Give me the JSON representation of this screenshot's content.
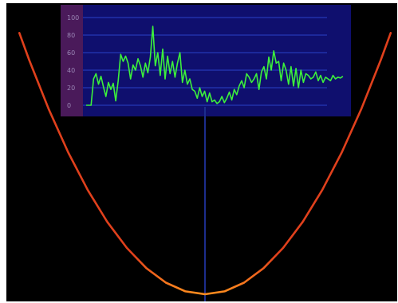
{
  "colors": {
    "background": "#000000",
    "inset_panel": "#0f0f6e",
    "inset_axis_strip": "#4a1a5a",
    "inset_grid": "#2a40c8",
    "inset_line": "#3cf03c",
    "parabola": "#e0401c",
    "parabola_highlight": "#ff8c1e",
    "center_line": "#1c2d8c"
  },
  "chart_data": [
    {
      "type": "line",
      "title": "",
      "xlabel": "",
      "ylabel": "",
      "ylim": [
        0,
        100
      ],
      "xlim": [
        0,
        105
      ],
      "y_ticks": [
        "100",
        "80",
        "60",
        "40",
        "20",
        "0"
      ],
      "grid": true,
      "legend": "none",
      "series": [
        {
          "x": [
            0,
            2,
            3,
            4,
            5,
            6,
            7,
            8,
            9,
            10,
            11,
            12,
            13,
            14,
            15,
            16,
            17,
            18,
            19,
            20,
            21,
            22,
            23,
            24,
            25,
            26,
            27,
            28,
            29,
            30,
            31,
            32,
            33,
            34,
            35,
            36,
            37,
            38,
            39,
            40,
            41,
            42,
            43,
            44,
            45,
            46,
            47,
            48,
            49,
            50,
            51,
            52,
            53,
            54,
            55,
            56,
            57,
            58,
            59,
            60,
            61,
            62,
            63,
            64,
            65,
            66,
            67,
            68,
            69,
            70,
            71,
            72,
            73,
            74,
            75,
            76,
            77,
            78,
            79,
            80,
            81,
            82,
            83,
            84,
            85,
            86,
            87,
            88,
            89,
            90,
            91,
            92,
            93,
            94,
            95,
            96,
            97,
            98,
            99,
            100,
            101,
            102,
            103,
            104
          ],
          "y": [
            0,
            0,
            30,
            36,
            24,
            33,
            21,
            10,
            26,
            18,
            25,
            5,
            28,
            58,
            50,
            56,
            48,
            30,
            46,
            40,
            53,
            45,
            32,
            48,
            37,
            55,
            90,
            45,
            60,
            34,
            64,
            30,
            56,
            36,
            50,
            32,
            48,
            60,
            26,
            40,
            24,
            30,
            18,
            16,
            8,
            20,
            10,
            16,
            4,
            14,
            4,
            6,
            2,
            4,
            10,
            3,
            8,
            15,
            6,
            18,
            12,
            22,
            28,
            20,
            36,
            32,
            26,
            30,
            36,
            18,
            38,
            44,
            30,
            55,
            40,
            62,
            48,
            50,
            28,
            48,
            40,
            24,
            44,
            22,
            42,
            20,
            40,
            26,
            36,
            34,
            30,
            32,
            38,
            28,
            34,
            26,
            32,
            30,
            28,
            34,
            30,
            32,
            31,
            33
          ]
        }
      ]
    },
    {
      "type": "line",
      "title": "",
      "xlabel": "",
      "ylabel": "",
      "xlim": [
        -1,
        1
      ],
      "ylim": [
        0,
        1
      ],
      "grid": false,
      "legend": "none",
      "series": [
        {
          "x": [
            -0.95,
            -0.9,
            -0.8,
            -0.7,
            -0.6,
            -0.5,
            -0.4,
            -0.3,
            -0.2,
            -0.1,
            0,
            0.1,
            0.2,
            0.3,
            0.4,
            0.5,
            0.6,
            0.7,
            0.8,
            0.9,
            0.95
          ],
          "y": [
            0.9025,
            0.81,
            0.64,
            0.49,
            0.36,
            0.25,
            0.16,
            0.09,
            0.04,
            0.01,
            0,
            0.01,
            0.04,
            0.09,
            0.16,
            0.25,
            0.36,
            0.49,
            0.64,
            0.81,
            0.9025
          ]
        }
      ]
    }
  ]
}
